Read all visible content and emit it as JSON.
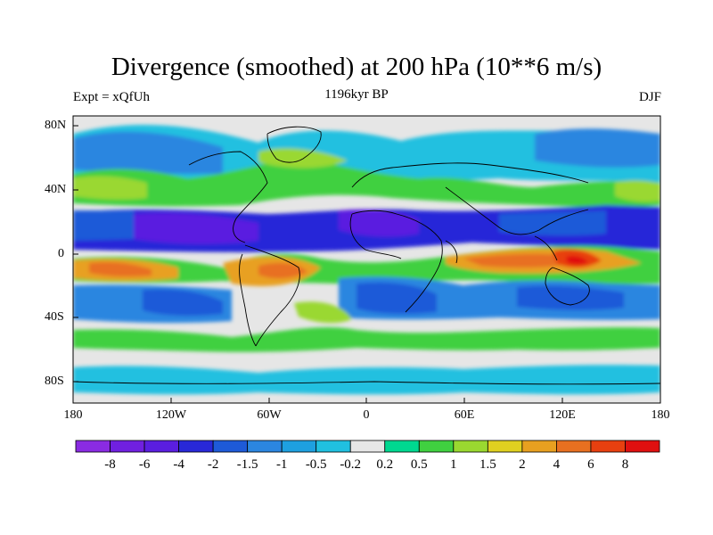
{
  "title": "Divergence (smoothed) at 200 hPa (10**6 m/s)",
  "subtitle_left": "Expt = xQfUh",
  "subtitle_center": "1196kyr BP",
  "subtitle_right": "DJF",
  "map": {
    "projection": "cylindrical equidistant",
    "lon_range": [
      -180,
      180
    ],
    "lat_range": [
      -90,
      90
    ],
    "lat_labels": [
      "80N",
      "40N",
      "0",
      "40S",
      "80S"
    ],
    "lon_labels": [
      "180",
      "120W",
      "60W",
      "0",
      "60E",
      "120E",
      "180"
    ]
  },
  "colorbar": {
    "colors": [
      "#8a2be2",
      "#7020e0",
      "#5a1ee0",
      "#2828d8",
      "#1e5ad8",
      "#2b86e0",
      "#1ea0e0",
      "#20c0e0",
      "#e6e6e6",
      "#00d890",
      "#40d040",
      "#9ad830",
      "#e0d020",
      "#e8a020",
      "#e87020",
      "#e84010",
      "#e01010"
    ],
    "labels": [
      "-8",
      "-6",
      "-4",
      "-2",
      "-1.5",
      "-1",
      "-0.5",
      "-0.2",
      "0.2",
      "0.5",
      "1",
      "1.5",
      "2",
      "4",
      "6",
      "8"
    ]
  }
}
